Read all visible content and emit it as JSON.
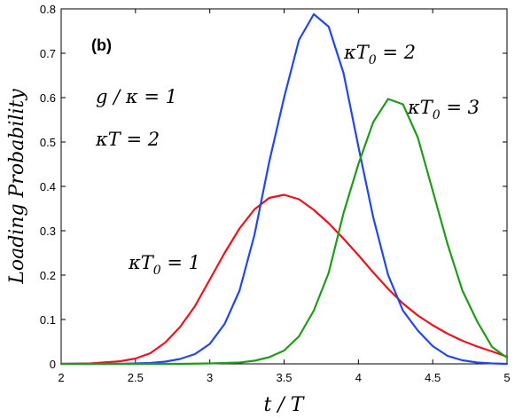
{
  "chart_data": {
    "type": "line",
    "panel_label": "(b)",
    "xlabel": "t / T",
    "ylabel": "Loading Probability",
    "xlim": [
      2,
      5
    ],
    "ylim": [
      0,
      0.8
    ],
    "xticks": [
      2,
      2.5,
      3,
      3.5,
      4,
      4.5,
      5
    ],
    "xtick_labels": [
      "2",
      "2.5",
      "3",
      "3.5",
      "4",
      "4.5",
      "5"
    ],
    "yticks": [
      0,
      0.1,
      0.2,
      0.3,
      0.4,
      0.5,
      0.6,
      0.7,
      0.8
    ],
    "ytick_labels": [
      "0",
      "0.1",
      "0.2",
      "0.3",
      "0.4",
      "0.5",
      "0.6",
      "0.7",
      "0.8"
    ],
    "grid": false,
    "annotations": {
      "params_line1": "g / κ = 1",
      "params_line2": "κT = 2"
    },
    "series": [
      {
        "name": "κT0 = 1",
        "label_main": "κT",
        "label_sub": "0",
        "label_rest": " = 1",
        "color": "#e8141d",
        "x": [
          2.0,
          2.2,
          2.4,
          2.5,
          2.6,
          2.7,
          2.8,
          2.9,
          3.0,
          3.1,
          3.2,
          3.3,
          3.4,
          3.5,
          3.6,
          3.7,
          3.8,
          3.9,
          4.0,
          4.1,
          4.2,
          4.3,
          4.4,
          4.5,
          4.6,
          4.7,
          4.8,
          4.9,
          5.0
        ],
        "y": [
          0.0,
          0.001,
          0.006,
          0.012,
          0.024,
          0.048,
          0.083,
          0.13,
          0.19,
          0.25,
          0.305,
          0.348,
          0.374,
          0.381,
          0.371,
          0.347,
          0.317,
          0.282,
          0.245,
          0.206,
          0.169,
          0.136,
          0.109,
          0.087,
          0.068,
          0.052,
          0.039,
          0.028,
          0.016
        ]
      },
      {
        "name": "κT0 = 2",
        "label_main": "κT",
        "label_sub": "0",
        "label_rest": " = 2",
        "color": "#2347e6",
        "x": [
          2.0,
          2.4,
          2.6,
          2.7,
          2.8,
          2.9,
          3.0,
          3.1,
          3.2,
          3.3,
          3.4,
          3.5,
          3.6,
          3.7,
          3.8,
          3.9,
          4.0,
          4.1,
          4.2,
          4.3,
          4.4,
          4.5,
          4.6,
          4.7,
          4.8,
          4.9,
          5.0
        ],
        "y": [
          0.0,
          0.0,
          0.002,
          0.005,
          0.011,
          0.022,
          0.045,
          0.09,
          0.165,
          0.29,
          0.455,
          0.6,
          0.73,
          0.788,
          0.76,
          0.655,
          0.49,
          0.33,
          0.2,
          0.12,
          0.075,
          0.04,
          0.018,
          0.008,
          0.003,
          0.001,
          0.0
        ]
      },
      {
        "name": "κT0 = 3",
        "label_main": "κT",
        "label_sub": "0",
        "label_rest": " = 3",
        "color": "#1f9a1a",
        "x": [
          2.0,
          2.8,
          3.0,
          3.2,
          3.3,
          3.4,
          3.5,
          3.6,
          3.7,
          3.8,
          3.9,
          4.0,
          4.1,
          4.2,
          4.3,
          4.4,
          4.5,
          4.6,
          4.7,
          4.8,
          4.9,
          5.0
        ],
        "y": [
          0.0,
          0.0,
          0.001,
          0.003,
          0.007,
          0.015,
          0.03,
          0.062,
          0.12,
          0.205,
          0.34,
          0.45,
          0.545,
          0.597,
          0.585,
          0.51,
          0.39,
          0.27,
          0.165,
          0.095,
          0.038,
          0.014
        ]
      }
    ]
  }
}
